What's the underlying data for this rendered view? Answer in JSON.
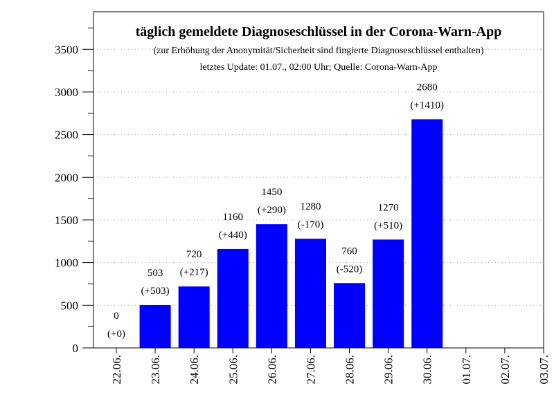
{
  "chart_data": {
    "type": "bar",
    "title": "täglich gemeldete Diagnoseschlüssel in der Corona-Warn-App",
    "subtitle": "(zur Erhöhung der Anonymität/Sicherheit sind fingierte Diagnoseschlüssel enthalten)",
    "note": "letztes Update: 01.07., 02:00 Uhr; Quelle: Corona-Warn-App",
    "categories": [
      "22.06.",
      "23.06.",
      "24.06.",
      "25.06.",
      "26.06.",
      "27.06.",
      "28.06.",
      "29.06.",
      "30.06.",
      "01.07.",
      "02.07.",
      "03.07."
    ],
    "values": [
      0,
      503,
      720,
      1160,
      1450,
      1280,
      760,
      1270,
      2680,
      null,
      null,
      null
    ],
    "change_labels": [
      "(+0)",
      "(+503)",
      "(+217)",
      "(+440)",
      "(+290)",
      "(-170)",
      "(-520)",
      "(+510)",
      "(+1410)",
      null,
      null,
      null
    ],
    "color": "#0000ff",
    "ylim": [
      0,
      3940
    ],
    "yticks": [
      0,
      500,
      1000,
      1500,
      2000,
      2500,
      3000,
      3500
    ],
    "grid": true
  }
}
